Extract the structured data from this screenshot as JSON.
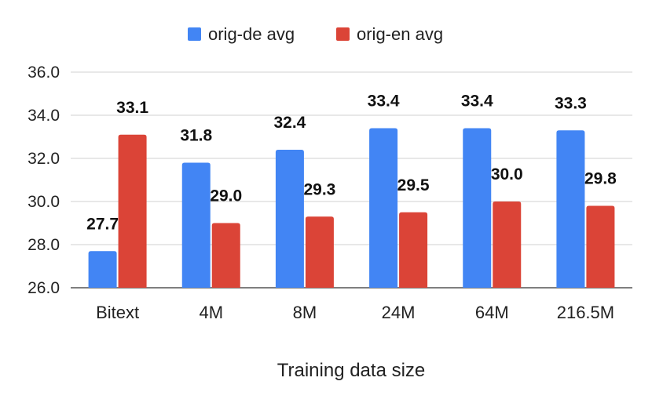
{
  "chart_data": {
    "type": "bar",
    "title": "",
    "xlabel": "Training data size",
    "ylabel": "",
    "categories": [
      "Bitext",
      "4M",
      "8M",
      "24M",
      "64M",
      "216.5M"
    ],
    "series": [
      {
        "name": "orig-de avg",
        "color": "#4285f4",
        "values": [
          27.7,
          31.8,
          32.4,
          33.4,
          33.4,
          33.3
        ],
        "labels": [
          "27.7",
          "31.8",
          "32.4",
          "33.4",
          "33.4",
          "33.3"
        ]
      },
      {
        "name": "orig-en avg",
        "color": "#db4437",
        "values": [
          33.1,
          29.0,
          29.3,
          29.5,
          30.0,
          29.8
        ],
        "labels": [
          "33.1",
          "29.0",
          "29.3",
          "29.5",
          "30.0",
          "29.8"
        ]
      }
    ],
    "ylim": [
      26,
      36
    ],
    "yticks": [
      "26.0",
      "28.0",
      "30.0",
      "32.0",
      "34.0",
      "36.0"
    ],
    "grid": true,
    "legend_position": "top-center"
  }
}
